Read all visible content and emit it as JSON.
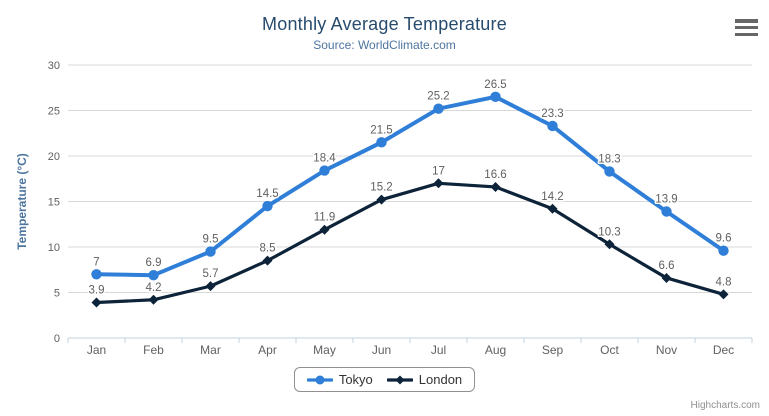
{
  "chart": {
    "credits": "Highcharts.com"
  },
  "chart_data": {
    "type": "line",
    "title": "Monthly Average Temperature",
    "subtitle": "Source: WorldClimate.com",
    "categories": [
      "Jan",
      "Feb",
      "Mar",
      "Apr",
      "May",
      "Jun",
      "Jul",
      "Aug",
      "Sep",
      "Oct",
      "Nov",
      "Dec"
    ],
    "series": [
      {
        "name": "Tokyo",
        "color": "#2f7ed8",
        "marker": "circle",
        "values": [
          7,
          6.9,
          9.5,
          14.5,
          18.4,
          21.5,
          25.2,
          26.5,
          23.3,
          18.3,
          13.9,
          9.6
        ]
      },
      {
        "name": "London",
        "color": "#0d2339",
        "marker": "diamond",
        "values": [
          3.9,
          4.2,
          5.7,
          8.5,
          11.9,
          15.2,
          17,
          16.6,
          14.2,
          10.3,
          6.6,
          4.8
        ]
      }
    ],
    "xlabel": "",
    "ylabel": "Temperature (°C)",
    "ylim": [
      0,
      30
    ],
    "yticks": [
      0,
      5,
      10,
      15,
      20,
      25,
      30
    ],
    "grid": true,
    "legend_position": "bottom-center",
    "data_labels": true
  },
  "colors": {
    "background": "#ffffff",
    "title": "#274b6d",
    "subtitle": "#4d759e",
    "axis_labels": "#606060",
    "data_labels": "#606060",
    "gridline": "#d8d8d8",
    "axis_line": "#c0d0e0",
    "legend_border": "#909090",
    "legend_text": "#333333",
    "credits": "#909090",
    "menu_icon": "#666666"
  },
  "icons": {
    "export_menu": "hamburger-icon"
  }
}
